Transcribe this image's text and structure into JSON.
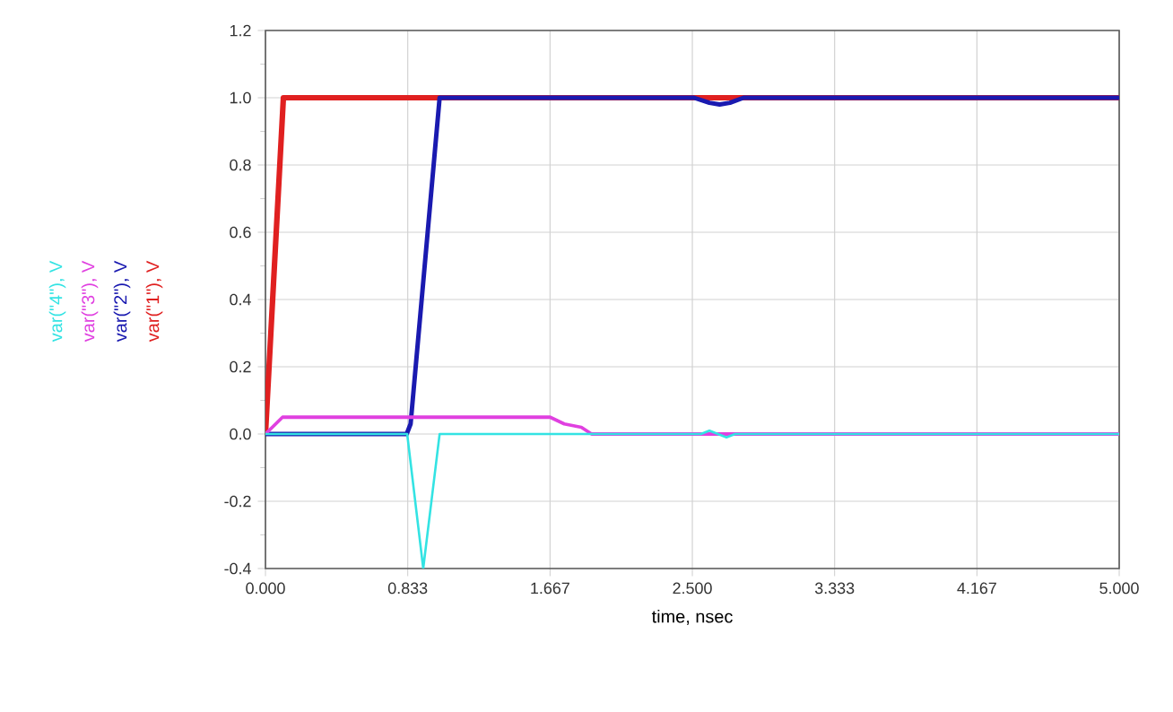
{
  "chart_data": {
    "type": "line",
    "xlabel": "time, nsec",
    "series": [
      {
        "name": "var(\"4\"), V",
        "color": "#33e3e3",
        "x": [
          0,
          0.83,
          0.924,
          1.02,
          2.55,
          2.6,
          2.7,
          2.75,
          5
        ],
        "values": [
          0,
          0,
          -0.4,
          0,
          0,
          0.01,
          -0.01,
          0,
          0
        ]
      },
      {
        "name": "var(\"3\"), V",
        "color": "#e040e0",
        "x": [
          0,
          0.02,
          0.1,
          1.667,
          1.75,
          1.85,
          1.91,
          5
        ],
        "values": [
          0,
          0.01,
          0.05,
          0.05,
          0.03,
          0.02,
          0,
          0
        ]
      },
      {
        "name": "var(\"2\"), V",
        "color": "#1a1ab0",
        "x": [
          0,
          0.827,
          0.85,
          0.95,
          1.02,
          2.51,
          2.6,
          2.66,
          2.72,
          2.8,
          5
        ],
        "values": [
          0,
          0,
          0.03,
          0.6,
          1.0,
          1.0,
          0.985,
          0.98,
          0.985,
          1.0,
          1.0
        ]
      },
      {
        "name": "var(\"1\"), V",
        "color": "#e02020",
        "x": [
          0,
          0.105,
          5
        ],
        "values": [
          0,
          1.0,
          1.0
        ]
      }
    ],
    "xlim": [
      0,
      5
    ],
    "ylim": [
      -0.4,
      1.2
    ],
    "xticks": [
      {
        "value": 0,
        "label": "0.000"
      },
      {
        "value": 0.8333,
        "label": "0.833"
      },
      {
        "value": 1.6667,
        "label": "1.667"
      },
      {
        "value": 2.5,
        "label": "2.500"
      },
      {
        "value": 3.3333,
        "label": "3.333"
      },
      {
        "value": 4.1667,
        "label": "4.167"
      },
      {
        "value": 5,
        "label": "5.000"
      }
    ],
    "yticks": [
      {
        "value": -0.4,
        "label": "-0.4"
      },
      {
        "value": -0.2,
        "label": "-0.2"
      },
      {
        "value": 0,
        "label": "0.0"
      },
      {
        "value": 0.2,
        "label": "0.2"
      },
      {
        "value": 0.4,
        "label": "0.4"
      },
      {
        "value": 0.6,
        "label": "0.6"
      },
      {
        "value": 0.8,
        "label": "0.8"
      },
      {
        "value": 1.0,
        "label": "1.0"
      },
      {
        "value": 1.2,
        "label": "1.2"
      }
    ],
    "grid": true,
    "legend": "left",
    "marker": "none",
    "line_style": "solid"
  }
}
